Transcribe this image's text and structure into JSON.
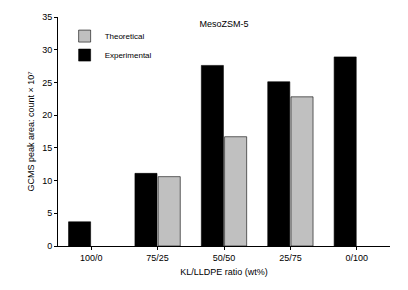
{
  "chart_data": {
    "type": "bar",
    "title": "MesoZSM-5",
    "x_label": "KL/LLDPE ratio (wt%)",
    "y_label": "GCMS peak area: count × 10⁷",
    "categories": [
      "100/0",
      "75/25",
      "50/50",
      "25/75",
      "0/100"
    ],
    "series": [
      {
        "name": "Theoretical",
        "color": "#c0c0c0",
        "values": [
          null,
          10.6,
          16.7,
          22.8,
          null
        ]
      },
      {
        "name": "Experimental",
        "color": "#000000",
        "values": [
          3.7,
          11.1,
          27.6,
          25.1,
          28.9
        ]
      }
    ],
    "ylim": [
      0,
      35
    ],
    "yticks": [
      0,
      5,
      10,
      15,
      20,
      25,
      30,
      35
    ],
    "grid": false,
    "legend": "upper left"
  }
}
